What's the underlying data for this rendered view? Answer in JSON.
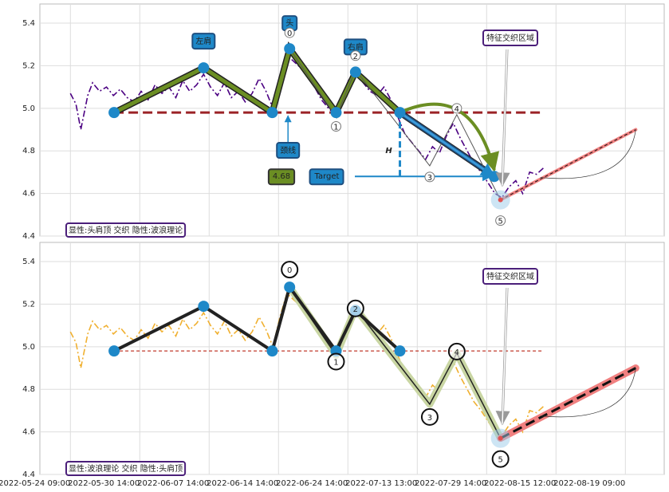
{
  "chart_data": [
    {
      "type": "line",
      "xlim": [
        -0.44,
        8.56
      ],
      "ylim": [
        4.4,
        5.49
      ],
      "xticks": [
        0,
        1,
        2,
        3,
        4,
        5,
        6,
        7,
        8
      ],
      "yticks": [
        {
          "value": 4.4,
          "label": "4.4"
        },
        {
          "value": 4.6,
          "label": "4.6"
        },
        {
          "value": 4.8,
          "label": "4.8"
        },
        {
          "value": 5.0,
          "label": "5.0"
        },
        {
          "value": 5.2,
          "label": "5.2"
        },
        {
          "value": 5.4,
          "label": "5.4"
        }
      ],
      "grid": true,
      "price": {
        "color": "#4b0082",
        "x": [
          0,
          0.08,
          0.15,
          0.25,
          0.32,
          0.42,
          0.52,
          0.62,
          0.72,
          0.82,
          0.92,
          1.02,
          1.12,
          1.22,
          1.32,
          1.42,
          1.52,
          1.62,
          1.72,
          1.82,
          1.92,
          2.02,
          2.12,
          2.22,
          2.32,
          2.42,
          2.52,
          2.62,
          2.72,
          2.82,
          2.92,
          3.02,
          3.12,
          3.22,
          3.32,
          3.42,
          3.52,
          3.62,
          3.72,
          3.82,
          3.92,
          4.02,
          4.12,
          4.22,
          4.32,
          4.42,
          4.52,
          4.62,
          4.72,
          4.82,
          4.92,
          5.02,
          5.12,
          5.22,
          5.32,
          5.42,
          5.52,
          5.62,
          5.72,
          5.82,
          5.92,
          6.02,
          6.12,
          6.22,
          6.32,
          6.42,
          6.52,
          6.62,
          6.72,
          6.82
        ],
        "values": [
          5.07,
          5.02,
          4.9,
          5.06,
          5.12,
          5.08,
          5.1,
          5.06,
          5.09,
          5.05,
          5.03,
          5.08,
          5.04,
          5.11,
          5.07,
          5.1,
          5.05,
          5.13,
          5.08,
          5.11,
          5.16,
          5.1,
          5.06,
          5.12,
          5.05,
          5.08,
          5.03,
          5.07,
          5.14,
          5.08,
          5.0,
          5.14,
          5.25,
          5.22,
          5.19,
          5.15,
          5.1,
          5.04,
          5.0,
          4.97,
          5.06,
          5.14,
          5.16,
          5.12,
          5.08,
          5.06,
          5.1,
          5.04,
          4.96,
          4.88,
          4.84,
          4.8,
          4.76,
          4.82,
          4.79,
          4.87,
          4.93,
          4.86,
          4.8,
          4.74,
          4.7,
          4.65,
          4.6,
          4.58,
          4.63,
          4.66,
          4.6,
          4.7,
          4.69,
          4.72
        ]
      },
      "pattern": {
        "color": "#6b8e23",
        "x": [
          0.63,
          1.92,
          2.91,
          3.16,
          3.83,
          4.11,
          4.75,
          6.11
        ],
        "values": [
          4.98,
          5.19,
          4.98,
          5.28,
          4.98,
          5.17,
          4.98,
          4.68
        ]
      },
      "waves": {
        "x": [
          3.16,
          3.83,
          4.11,
          5.18,
          5.57,
          6.2
        ],
        "values": [
          5.28,
          4.96,
          5.18,
          4.73,
          4.97,
          4.57
        ],
        "labels": [
          "0",
          "1",
          "2",
          "3",
          "4",
          "5"
        ]
      },
      "neckline": {
        "value": 4.98,
        "x": [
          0.63,
          6.8
        ]
      },
      "projection": {
        "x": [
          6.2,
          8.15
        ],
        "values": [
          4.57,
          4.9
        ]
      },
      "target_value": 4.68,
      "annotations": {
        "left_shoulder": "左肩",
        "head": "头",
        "right_shoulder": "右肩",
        "neckline": "颈线",
        "target": "Target",
        "height": "H",
        "zone": "特征交织区域",
        "caption": "显性:头肩顶 交织 隐性:波浪理论"
      }
    },
    {
      "type": "line",
      "xlim": [
        -0.44,
        8.56
      ],
      "ylim": [
        4.4,
        5.49
      ],
      "xticks": [
        {
          "value": 0,
          "label": "2022-05-24 09:00"
        },
        {
          "value": 1,
          "label": "2022-05-30 14:00"
        },
        {
          "value": 2,
          "label": "2022-06-07 14:00"
        },
        {
          "value": 3,
          "label": "2022-06-14 14:00"
        },
        {
          "value": 4,
          "label": "2022-06-24 14:00"
        },
        {
          "value": 5,
          "label": "2022-07-13 13:00"
        },
        {
          "value": 6,
          "label": "2022-07-29 14:00"
        },
        {
          "value": 7,
          "label": "2022-08-15 12:00"
        },
        {
          "value": 8,
          "label": "2022-08-19 09:00"
        }
      ],
      "yticks": [
        {
          "value": 4.4,
          "label": "4.4"
        },
        {
          "value": 4.6,
          "label": "4.6"
        },
        {
          "value": 4.8,
          "label": "4.8"
        },
        {
          "value": 5.0,
          "label": "5.0"
        },
        {
          "value": 5.2,
          "label": "5.2"
        },
        {
          "value": 5.4,
          "label": "5.4"
        }
      ],
      "grid": true,
      "price": {
        "color": "#f0b030",
        "x": [
          0,
          0.08,
          0.15,
          0.25,
          0.32,
          0.42,
          0.52,
          0.62,
          0.72,
          0.82,
          0.92,
          1.02,
          1.12,
          1.22,
          1.32,
          1.42,
          1.52,
          1.62,
          1.72,
          1.82,
          1.92,
          2.02,
          2.12,
          2.22,
          2.32,
          2.42,
          2.52,
          2.62,
          2.72,
          2.82,
          2.92,
          3.02,
          3.12,
          3.22,
          3.32,
          3.42,
          3.52,
          3.62,
          3.72,
          3.82,
          3.92,
          4.02,
          4.12,
          4.22,
          4.32,
          4.42,
          4.52,
          4.62,
          4.72,
          4.82,
          4.92,
          5.02,
          5.12,
          5.22,
          5.32,
          5.42,
          5.52,
          5.62,
          5.72,
          5.82,
          5.92,
          6.02,
          6.12,
          6.22,
          6.32,
          6.42,
          6.52,
          6.62,
          6.72,
          6.82
        ],
        "values": [
          5.07,
          5.02,
          4.9,
          5.06,
          5.12,
          5.08,
          5.1,
          5.06,
          5.09,
          5.05,
          5.03,
          5.08,
          5.04,
          5.11,
          5.07,
          5.1,
          5.05,
          5.13,
          5.08,
          5.11,
          5.16,
          5.1,
          5.06,
          5.12,
          5.05,
          5.08,
          5.03,
          5.07,
          5.14,
          5.08,
          5.0,
          5.14,
          5.25,
          5.22,
          5.19,
          5.15,
          5.1,
          5.04,
          5.0,
          4.97,
          5.06,
          5.14,
          5.16,
          5.12,
          5.08,
          5.06,
          5.1,
          5.04,
          4.96,
          4.88,
          4.84,
          4.8,
          4.76,
          4.82,
          4.79,
          4.87,
          4.93,
          4.86,
          4.8,
          4.74,
          4.7,
          4.65,
          4.6,
          4.58,
          4.63,
          4.66,
          4.6,
          4.7,
          4.69,
          4.72
        ]
      },
      "pattern": {
        "color": "#222222",
        "x": [
          0.63,
          1.92,
          2.91,
          3.16,
          3.83,
          4.11,
          4.75
        ],
        "values": [
          4.98,
          5.19,
          4.98,
          5.28,
          4.98,
          5.17,
          4.98
        ]
      },
      "waves": {
        "x": [
          3.16,
          3.83,
          4.11,
          5.18,
          5.57,
          6.2
        ],
        "values": [
          5.28,
          4.96,
          5.18,
          4.73,
          4.97,
          4.57
        ],
        "labels": [
          "0",
          "1",
          "2",
          "3",
          "4",
          "5"
        ]
      },
      "neckline": {
        "value": 4.98,
        "x": [
          0.63,
          6.8
        ]
      },
      "projection": {
        "x": [
          6.2,
          8.15
        ],
        "values": [
          4.57,
          4.9
        ]
      },
      "annotations": {
        "zone": "特征交织区域",
        "caption": "显性:波浪理论 交织 隐性:头肩顶"
      }
    }
  ]
}
